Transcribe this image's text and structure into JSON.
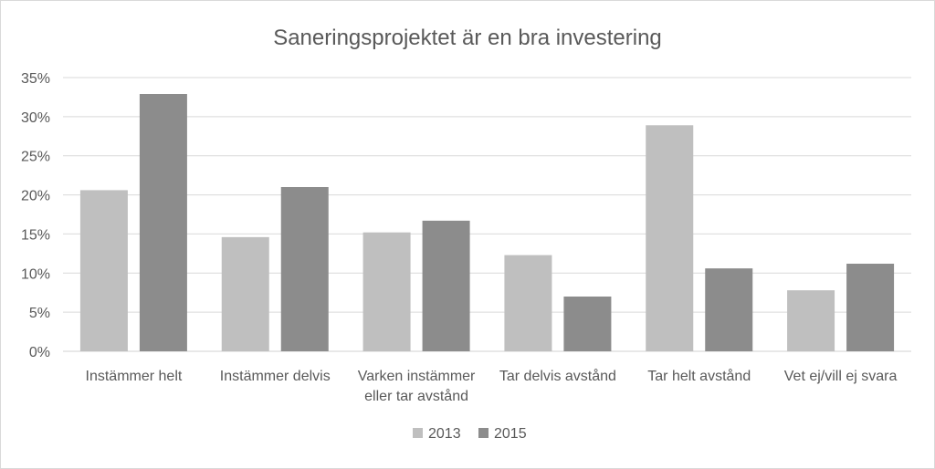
{
  "chart_data": {
    "type": "bar",
    "title": "Saneringsprojektet är en bra investering",
    "categories": [
      [
        "Instämmer helt"
      ],
      [
        "Instämmer delvis"
      ],
      [
        "Varken instämmer",
        "eller tar avstånd"
      ],
      [
        "Tar delvis avstånd"
      ],
      [
        "Tar helt avstånd"
      ],
      [
        "Vet ej/vill ej svara"
      ]
    ],
    "series": [
      {
        "name": "2013",
        "color": "#bfbfbf",
        "values": [
          20.6,
          14.6,
          15.2,
          12.3,
          28.9,
          7.8
        ]
      },
      {
        "name": "2015",
        "color": "#8c8c8c",
        "values": [
          32.9,
          21.0,
          16.7,
          7.0,
          10.6,
          11.2
        ]
      }
    ],
    "y_ticks": [
      "0%",
      "5%",
      "10%",
      "15%",
      "20%",
      "25%",
      "30%",
      "35%"
    ],
    "ylim": [
      0,
      35
    ],
    "grid": true,
    "legend_position": "bottom"
  }
}
